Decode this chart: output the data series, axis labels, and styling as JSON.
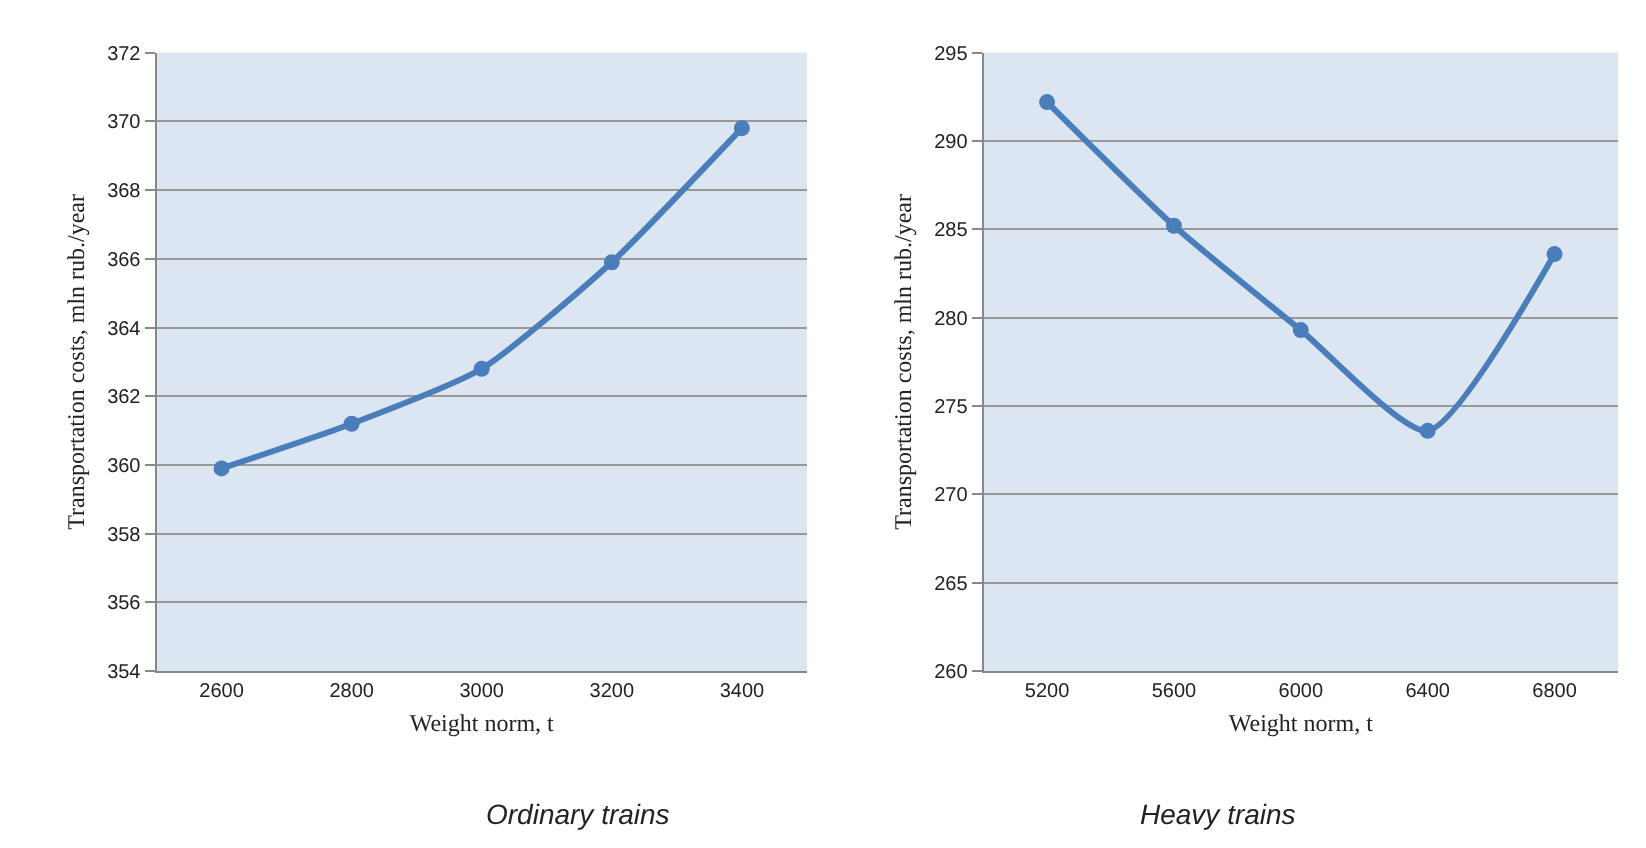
{
  "chart_data": [
    {
      "type": "line",
      "categories": [
        "2600",
        "2800",
        "3000",
        "3200",
        "3400"
      ],
      "xlabel": "Weight norm, t",
      "ylabel": "Transportation costs, mln rub./year",
      "annotations": [
        "Ordinary trains"
      ],
      "series": [
        {
          "color": "#4a7ebb",
          "values": [
            359.9,
            361.2,
            362.8,
            365.9,
            369.8
          ]
        }
      ],
      "ylim": [
        354,
        372
      ],
      "yticks": [
        354,
        356,
        358,
        360,
        362,
        364,
        366,
        368,
        370,
        372
      ],
      "grid": "y",
      "marker": "circle",
      "line_style": "solid"
    },
    {
      "type": "line",
      "categories": [
        "5200",
        "5600",
        "6000",
        "6400",
        "6800"
      ],
      "xlabel": "Weight norm, t",
      "ylabel": "Transportation costs, mln rub./year",
      "annotations": [
        "Heavy trains"
      ],
      "series": [
        {
          "color": "#4a7ebb",
          "values": [
            292.2,
            285.2,
            279.3,
            273.6,
            283.6
          ]
        }
      ],
      "ylim": [
        260,
        295
      ],
      "yticks": [
        260,
        265,
        270,
        275,
        280,
        285,
        290,
        295
      ],
      "grid": "y",
      "marker": "circle",
      "line_style": "solid"
    }
  ]
}
